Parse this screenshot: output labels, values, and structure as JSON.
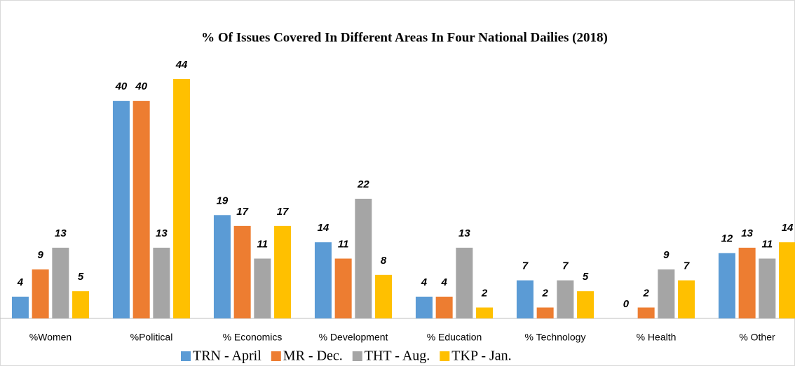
{
  "chart_data": {
    "type": "bar",
    "title": "% Of Issues Covered In Different  Areas In Four National Dailies (2018)",
    "categories": [
      "%Women",
      "%Political",
      "% Economics",
      "% Development",
      "% Education",
      "% Technology",
      "% Health",
      "% Other"
    ],
    "series": [
      {
        "name": "TRN - April",
        "color": "#5b9bd5",
        "values": [
          4,
          40,
          19,
          14,
          4,
          7,
          0,
          12
        ]
      },
      {
        "name": "MR -  Dec.",
        "color": "#ed7d31",
        "values": [
          9,
          40,
          17,
          11,
          4,
          2,
          2,
          13
        ]
      },
      {
        "name": "THT - Aug.",
        "color": "#a5a5a5",
        "values": [
          13,
          13,
          11,
          22,
          13,
          7,
          9,
          11
        ]
      },
      {
        "name": "TKP - Jan.",
        "color": "#ffc000",
        "values": [
          5,
          44,
          17,
          8,
          2,
          5,
          7,
          14
        ]
      }
    ]
  }
}
